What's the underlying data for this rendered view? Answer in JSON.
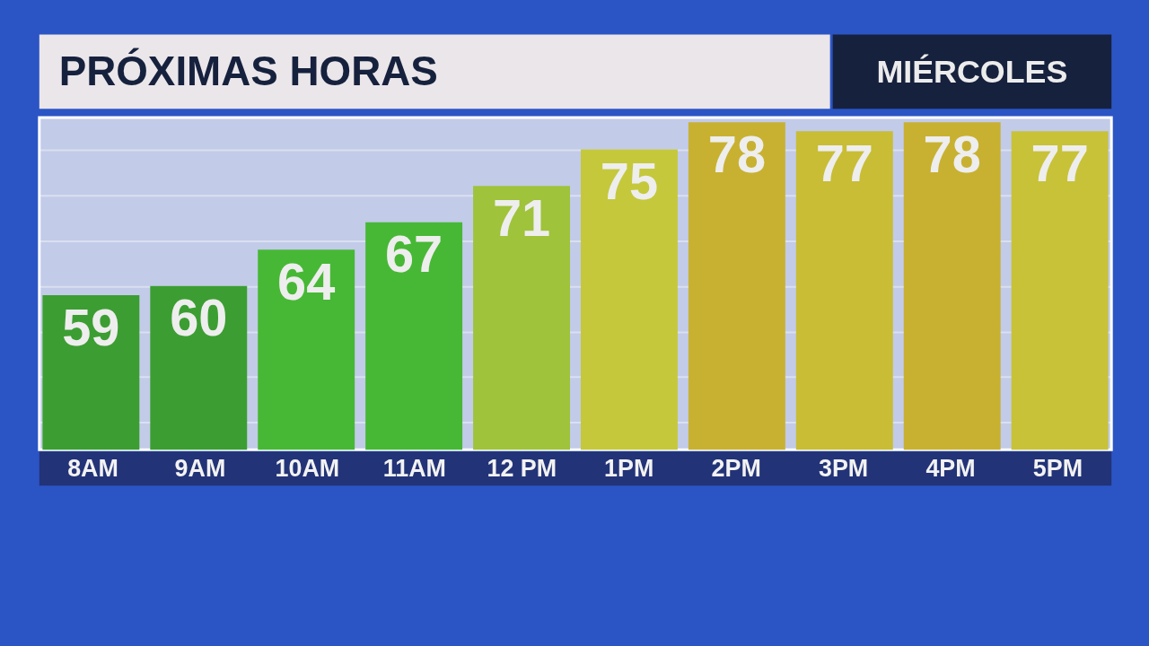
{
  "chart_data": {
    "type": "bar",
    "title": "PRÓXIMAS HORAS",
    "subtitle": "MIÉRCOLES",
    "categories": [
      "8AM",
      "9AM",
      "10AM",
      "11AM",
      "12 PM",
      "1PM",
      "2PM",
      "3PM",
      "4PM",
      "5PM"
    ],
    "values": [
      59,
      60,
      64,
      67,
      71,
      75,
      78,
      77,
      78,
      77
    ],
    "colors": [
      "#3c9e32",
      "#3c9e32",
      "#47b835",
      "#47b835",
      "#9fc33a",
      "#c5c83b",
      "#c8b131",
      "#c8bd35",
      "#c8b131",
      "#c8c238"
    ],
    "data_labels": true,
    "ylim": [
      42,
      78.5
    ],
    "yticks": [
      {
        "value": 45,
        "label": null
      },
      {
        "value": 50,
        "label": null
      },
      {
        "value": 55,
        "label": null
      },
      {
        "value": 60,
        "label": null
      },
      {
        "value": 65,
        "label": null
      },
      {
        "value": 70,
        "label": null
      },
      {
        "value": 75,
        "label": null
      }
    ],
    "grid": "y"
  }
}
